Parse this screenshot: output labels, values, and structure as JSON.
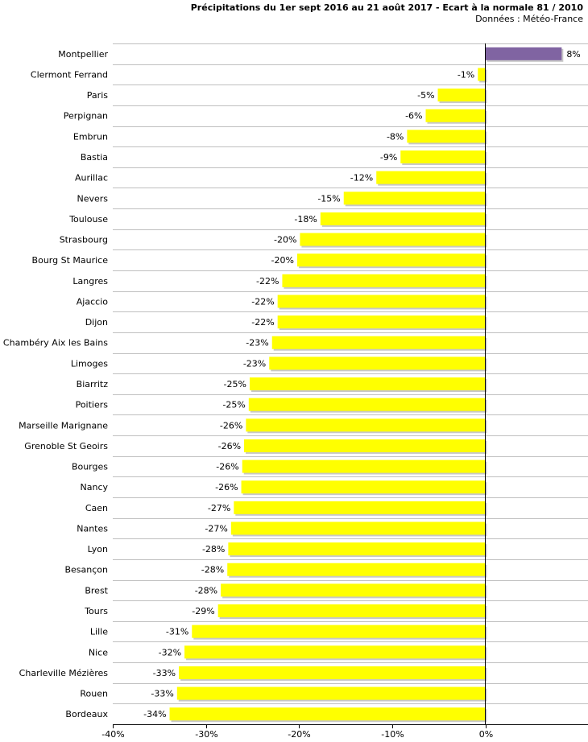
{
  "chart_data": {
    "type": "bar",
    "orientation": "horizontal",
    "title": "Précipitations du 1er sept 2016 au 21 août 2017 - Ecart à la normale 81 / 2010",
    "subtitle": "Données : Météo-France",
    "xlabel": "",
    "ylabel": "",
    "xlim": [
      -40,
      10
    ],
    "x_ticks": [
      -40,
      -30,
      -20,
      -10,
      0
    ],
    "x_tick_labels": [
      "-40%",
      "-30%",
      "-20%",
      "-10%",
      "0%"
    ],
    "grid": "horizontal",
    "legend": "none",
    "unit": "%",
    "categories": [
      "Montpellier",
      "Clermont Ferrand",
      "Paris",
      "Perpignan",
      "Embrun",
      "Bastia",
      "Aurillac",
      "Nevers",
      "Toulouse",
      "Strasbourg",
      "Bourg St Maurice",
      "Langres",
      "Ajaccio",
      "Dijon",
      "Chambéry Aix les Bains",
      "Limoges",
      "Biarritz",
      "Poitiers",
      "Marseille Marignane",
      "Grenoble St Geoirs",
      "Bourges",
      "Nancy",
      "Caen",
      "Nantes",
      "Lyon",
      "Besançon",
      "Brest",
      "Tours",
      "Lille",
      "Nice",
      "Charleville Mézières",
      "Rouen",
      "Bordeaux"
    ],
    "values": [
      8.2,
      -0.8,
      -5.1,
      -6.4,
      -8.4,
      -9.1,
      -11.7,
      -15.2,
      -17.7,
      -19.9,
      -20.2,
      -21.8,
      -22.3,
      -22.3,
      -22.9,
      -23.2,
      -25.3,
      -25.4,
      -25.7,
      -25.9,
      -26.1,
      -26.2,
      -27.0,
      -27.3,
      -27.6,
      -27.7,
      -28.4,
      -28.7,
      -31.5,
      -32.3,
      -32.9,
      -33.1,
      -33.9
    ],
    "value_labels": [
      "8%",
      "-1%",
      "-5%",
      "-6%",
      "-8%",
      "-9%",
      "-12%",
      "-15%",
      "-18%",
      "-20%",
      "-20%",
      "-22%",
      "-22%",
      "-22%",
      "-23%",
      "-23%",
      "-25%",
      "-25%",
      "-26%",
      "-26%",
      "-26%",
      "-26%",
      "-27%",
      "-27%",
      "-28%",
      "-28%",
      "-28%",
      "-29%",
      "-31%",
      "-32%",
      "-33%",
      "-33%",
      "-34%"
    ],
    "colors": {
      "positive": "#8064a2",
      "negative": "#ffff00",
      "shadow": "#c8c8c8",
      "grid": "#bfbfbf",
      "axis": "#000000"
    }
  }
}
